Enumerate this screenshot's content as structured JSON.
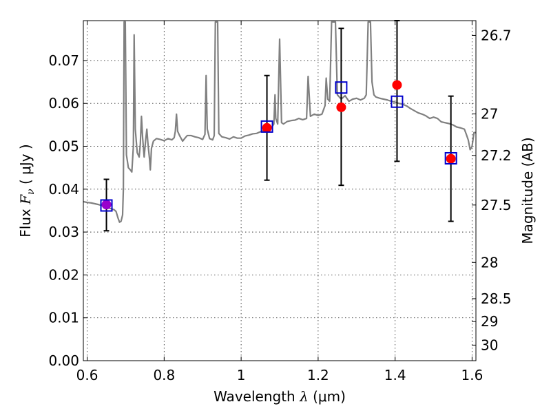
{
  "chart_data": {
    "type": "scatter",
    "title": "",
    "xlabel": "Wavelength  λ (μm)",
    "ylabel": "Flux  F_ν  ( μJy )",
    "ylabel_parts": {
      "prefix": "Flux  ",
      "symbol": "F",
      "sub": "ν",
      "unit": "  ( μJy )"
    },
    "xlabel_parts": {
      "prefix": "Wavelength  ",
      "symbol": "λ",
      "unit": " (μm)"
    },
    "ylabel_right": "Magnitude (AB)",
    "xlim": [
      0.59,
      1.61
    ],
    "ylim": [
      0.0,
      0.0793
    ],
    "grid": true,
    "x_ticks": [
      {
        "value": 0.6,
        "label": "0.6"
      },
      {
        "value": 0.8,
        "label": "0.8"
      },
      {
        "value": 1.0,
        "label": "1"
      },
      {
        "value": 1.2,
        "label": "1.2"
      },
      {
        "value": 1.4,
        "label": "1.4"
      },
      {
        "value": 1.6,
        "label": "1.6"
      }
    ],
    "y_ticks": [
      {
        "value": 0.0,
        "label": "0.00"
      },
      {
        "value": 0.01,
        "label": "0.01"
      },
      {
        "value": 0.02,
        "label": "0.02"
      },
      {
        "value": 0.03,
        "label": "0.03"
      },
      {
        "value": 0.04,
        "label": "0.04"
      },
      {
        "value": 0.05,
        "label": "0.05"
      },
      {
        "value": 0.06,
        "label": "0.06"
      },
      {
        "value": 0.07,
        "label": "0.07"
      }
    ],
    "mag_ticks": [
      {
        "mag": 26.7,
        "label": "26.7"
      },
      {
        "mag": 27.0,
        "label": "27"
      },
      {
        "mag": 27.2,
        "label": "27.2"
      },
      {
        "mag": 27.5,
        "label": "27.5"
      },
      {
        "mag": 28.0,
        "label": "28"
      },
      {
        "mag": 28.5,
        "label": "28.5"
      },
      {
        "mag": 29.0,
        "label": "29"
      },
      {
        "mag": 30.0,
        "label": "30"
      }
    ],
    "series": [
      {
        "kind": "line",
        "color": "#808080",
        "points": [
          [
            0.59,
            0.0371
          ],
          [
            0.6,
            0.0369
          ],
          [
            0.61,
            0.0368
          ],
          [
            0.62,
            0.0366
          ],
          [
            0.63,
            0.0364
          ],
          [
            0.64,
            0.0361
          ],
          [
            0.65,
            0.0358
          ],
          [
            0.66,
            0.0355
          ],
          [
            0.67,
            0.0352
          ],
          [
            0.675,
            0.0348
          ],
          [
            0.68,
            0.0333
          ],
          [
            0.684,
            0.0323
          ],
          [
            0.688,
            0.0325
          ],
          [
            0.692,
            0.034
          ],
          [
            0.694,
            0.04
          ],
          [
            0.696,
            0.079
          ],
          [
            0.699,
            0.079
          ],
          [
            0.702,
            0.048
          ],
          [
            0.707,
            0.045
          ],
          [
            0.712,
            0.0445
          ],
          [
            0.716,
            0.044
          ],
          [
            0.72,
            0.05
          ],
          [
            0.722,
            0.076
          ],
          [
            0.725,
            0.054
          ],
          [
            0.73,
            0.0485
          ],
          [
            0.735,
            0.0475
          ],
          [
            0.738,
            0.0505
          ],
          [
            0.741,
            0.057
          ],
          [
            0.744,
            0.052
          ],
          [
            0.748,
            0.0475
          ],
          [
            0.752,
            0.0515
          ],
          [
            0.755,
            0.054
          ],
          [
            0.758,
            0.0505
          ],
          [
            0.762,
            0.047
          ],
          [
            0.764,
            0.0445
          ],
          [
            0.767,
            0.0495
          ],
          [
            0.772,
            0.0512
          ],
          [
            0.78,
            0.0518
          ],
          [
            0.79,
            0.0516
          ],
          [
            0.8,
            0.0513
          ],
          [
            0.81,
            0.0518
          ],
          [
            0.82,
            0.0515
          ],
          [
            0.826,
            0.052
          ],
          [
            0.829,
            0.0535
          ],
          [
            0.832,
            0.0575
          ],
          [
            0.835,
            0.0535
          ],
          [
            0.84,
            0.0525
          ],
          [
            0.848,
            0.0512
          ],
          [
            0.855,
            0.052
          ],
          [
            0.86,
            0.0525
          ],
          [
            0.87,
            0.0525
          ],
          [
            0.88,
            0.0522
          ],
          [
            0.89,
            0.052
          ],
          [
            0.9,
            0.0516
          ],
          [
            0.906,
            0.0528
          ],
          [
            0.909,
            0.0665
          ],
          [
            0.912,
            0.054
          ],
          [
            0.918,
            0.0518
          ],
          [
            0.926,
            0.0515
          ],
          [
            0.93,
            0.0525
          ],
          [
            0.933,
            0.079
          ],
          [
            0.939,
            0.079
          ],
          [
            0.942,
            0.053
          ],
          [
            0.95,
            0.0522
          ],
          [
            0.96,
            0.052
          ],
          [
            0.97,
            0.0517
          ],
          [
            0.98,
            0.0522
          ],
          [
            0.99,
            0.0519
          ],
          [
            1.0,
            0.0519
          ],
          [
            1.01,
            0.0524
          ],
          [
            1.02,
            0.0526
          ],
          [
            1.03,
            0.0529
          ],
          [
            1.04,
            0.053
          ],
          [
            1.05,
            0.0534
          ],
          [
            1.06,
            0.0537
          ],
          [
            1.07,
            0.0541
          ],
          [
            1.08,
            0.0545
          ],
          [
            1.085,
            0.0552
          ],
          [
            1.088,
            0.062
          ],
          [
            1.09,
            0.0565
          ],
          [
            1.095,
            0.0552
          ],
          [
            1.1,
            0.075
          ],
          [
            1.105,
            0.0555
          ],
          [
            1.11,
            0.0552
          ],
          [
            1.12,
            0.0558
          ],
          [
            1.13,
            0.056
          ],
          [
            1.14,
            0.0561
          ],
          [
            1.15,
            0.0565
          ],
          [
            1.16,
            0.0562
          ],
          [
            1.17,
            0.0565
          ],
          [
            1.174,
            0.0663
          ],
          [
            1.18,
            0.057
          ],
          [
            1.19,
            0.0575
          ],
          [
            1.2,
            0.0572
          ],
          [
            1.21,
            0.0575
          ],
          [
            1.218,
            0.0595
          ],
          [
            1.221,
            0.0659
          ],
          [
            1.225,
            0.061
          ],
          [
            1.23,
            0.0605
          ],
          [
            1.235,
            0.079
          ],
          [
            1.245,
            0.079
          ],
          [
            1.25,
            0.062
          ],
          [
            1.26,
            0.061
          ],
          [
            1.27,
            0.0618
          ],
          [
            1.28,
            0.0605
          ],
          [
            1.29,
            0.061
          ],
          [
            1.3,
            0.0612
          ],
          [
            1.31,
            0.0608
          ],
          [
            1.32,
            0.0612
          ],
          [
            1.325,
            0.062
          ],
          [
            1.33,
            0.079
          ],
          [
            1.336,
            0.079
          ],
          [
            1.34,
            0.065
          ],
          [
            1.345,
            0.062
          ],
          [
            1.35,
            0.0615
          ],
          [
            1.36,
            0.0612
          ],
          [
            1.37,
            0.061
          ],
          [
            1.38,
            0.0608
          ],
          [
            1.39,
            0.0605
          ],
          [
            1.4,
            0.0603
          ],
          [
            1.41,
            0.06
          ],
          [
            1.42,
            0.0598
          ],
          [
            1.43,
            0.0594
          ],
          [
            1.44,
            0.0588
          ],
          [
            1.45,
            0.0583
          ],
          [
            1.46,
            0.0578
          ],
          [
            1.47,
            0.0575
          ],
          [
            1.48,
            0.0571
          ],
          [
            1.49,
            0.0565
          ],
          [
            1.5,
            0.0568
          ],
          [
            1.51,
            0.0565
          ],
          [
            1.52,
            0.0557
          ],
          [
            1.53,
            0.0555
          ],
          [
            1.54,
            0.0553
          ],
          [
            1.55,
            0.055
          ],
          [
            1.56,
            0.0545
          ],
          [
            1.57,
            0.0543
          ],
          [
            1.58,
            0.054
          ],
          [
            1.585,
            0.0528
          ],
          [
            1.59,
            0.0515
          ],
          [
            1.595,
            0.0492
          ],
          [
            1.6,
            0.05
          ],
          [
            1.605,
            0.0532
          ],
          [
            1.61,
            0.0532
          ]
        ]
      },
      {
        "kind": "errorbar",
        "color": "#000000",
        "points": [
          {
            "x": 0.65,
            "y": 0.0364,
            "low": 0.0303,
            "high": 0.0423
          },
          {
            "x": 1.067,
            "y": 0.0543,
            "low": 0.0421,
            "high": 0.0665
          },
          {
            "x": 1.26,
            "y": 0.0591,
            "low": 0.0409,
            "high": 0.0775
          },
          {
            "x": 1.405,
            "y": 0.0643,
            "low": 0.0465,
            "high": 0.0793
          },
          {
            "x": 1.545,
            "y": 0.0471,
            "low": 0.0325,
            "high": 0.0617
          }
        ]
      },
      {
        "kind": "points",
        "marker": "circle",
        "color": "#ff0000",
        "points": [
          {
            "x": 1.067,
            "y": 0.0543
          },
          {
            "x": 1.26,
            "y": 0.0591
          },
          {
            "x": 1.405,
            "y": 0.0643
          },
          {
            "x": 1.545,
            "y": 0.0471
          }
        ]
      },
      {
        "kind": "points",
        "marker": "circle",
        "color": "#9900cc",
        "points": [
          {
            "x": 0.65,
            "y": 0.0364
          }
        ]
      },
      {
        "kind": "points",
        "marker": "square",
        "color": "#0000cc",
        "points": [
          {
            "x": 0.65,
            "y": 0.0362
          },
          {
            "x": 1.067,
            "y": 0.0546
          },
          {
            "x": 1.26,
            "y": 0.0637
          },
          {
            "x": 1.405,
            "y": 0.0604
          },
          {
            "x": 1.545,
            "y": 0.0472
          }
        ]
      }
    ]
  }
}
